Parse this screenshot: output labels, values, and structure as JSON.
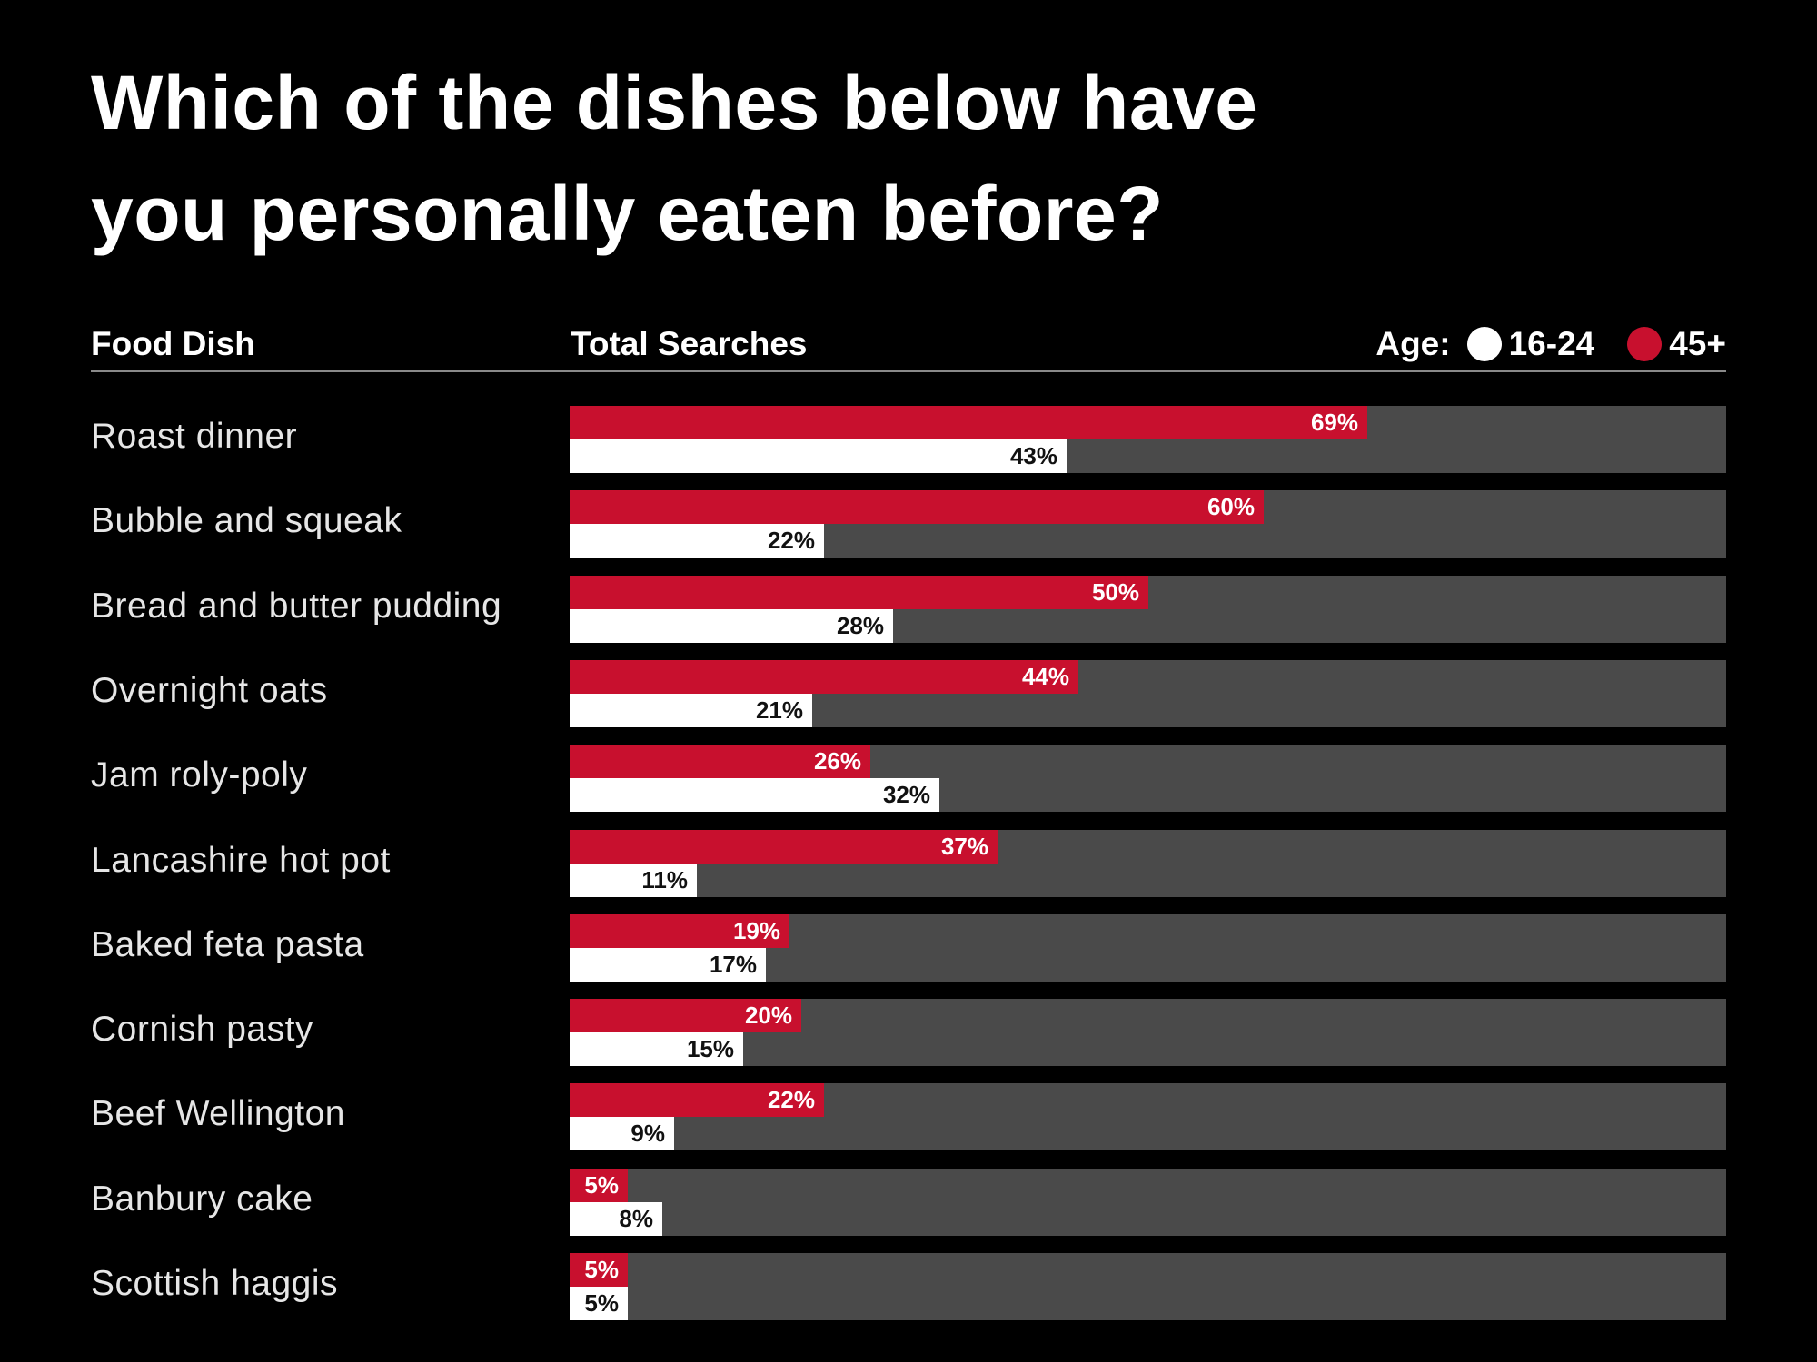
{
  "title_line1": "Which of the dishes below have",
  "title_line2": "you personally eaten before?",
  "header": {
    "food_dish": "Food Dish",
    "total_searches": "Total Searches",
    "age_label": "Age:",
    "legend_16_24": "16-24",
    "legend_45_plus": "45+"
  },
  "colors": {
    "background": "#000000",
    "track": "#4a4a4a",
    "series_45_plus": "#c8102e",
    "series_16_24": "#ffffff"
  },
  "chart_data": {
    "type": "bar",
    "orientation": "horizontal",
    "categories": [
      "Roast dinner",
      "Bubble and squeak",
      "Bread and butter pudding",
      "Overnight oats",
      "Jam roly-poly",
      "Lancashire hot pot",
      "Baked feta pasta",
      "Cornish pasty",
      "Beef Wellington",
      "Banbury cake",
      "Scottish haggis"
    ],
    "series": [
      {
        "name": "45+",
        "values": [
          69,
          60,
          50,
          44,
          26,
          37,
          19,
          20,
          22,
          5,
          5
        ]
      },
      {
        "name": "16-24",
        "values": [
          43,
          22,
          28,
          21,
          32,
          11,
          17,
          15,
          9,
          8,
          5
        ]
      }
    ],
    "value_suffix": "%",
    "xlim": [
      0,
      100
    ],
    "title": "Which of the dishes below have you personally eaten before?",
    "legend_title": "Age:"
  }
}
